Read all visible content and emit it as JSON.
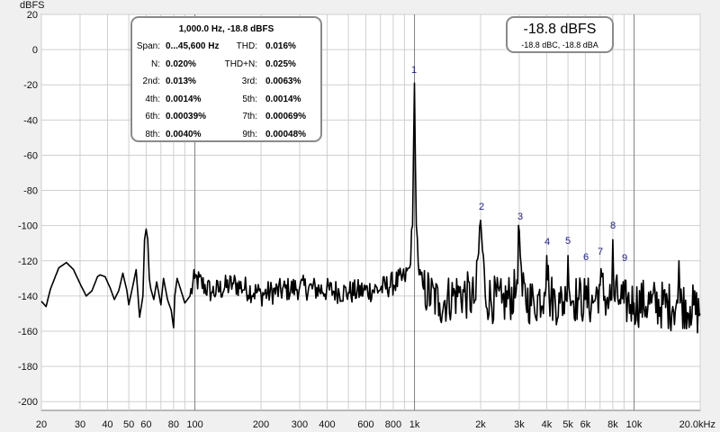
{
  "chart_data": {
    "type": "line",
    "ylabel": "dBFS",
    "xscale": "log",
    "xlim": [
      20,
      20000
    ],
    "ylim": [
      -205,
      20
    ],
    "y_ticks": [
      20,
      0,
      -20,
      -40,
      -60,
      -80,
      -100,
      -120,
      -140,
      -160,
      -180,
      -200
    ],
    "x_ticks": [
      {
        "value": 20,
        "label": "20"
      },
      {
        "value": 30,
        "label": "30"
      },
      {
        "value": 40,
        "label": "40"
      },
      {
        "value": 50,
        "label": "50"
      },
      {
        "value": 60,
        "label": "60"
      },
      {
        "value": 80,
        "label": "80"
      },
      {
        "value": 100,
        "label": "100"
      },
      {
        "value": 200,
        "label": "200"
      },
      {
        "value": 300,
        "label": "300"
      },
      {
        "value": 400,
        "label": "400"
      },
      {
        "value": 600,
        "label": "600"
      },
      {
        "value": 800,
        "label": "800"
      },
      {
        "value": 1000,
        "label": "1k"
      },
      {
        "value": 2000,
        "label": "2k"
      },
      {
        "value": 3000,
        "label": "3k"
      },
      {
        "value": 4000,
        "label": "4k"
      },
      {
        "value": 5000,
        "label": "5k"
      },
      {
        "value": 6000,
        "label": "6k"
      },
      {
        "value": 8000,
        "label": "8k"
      },
      {
        "value": 10000,
        "label": "10k"
      },
      {
        "value": 20000,
        "label": "20.0kHz"
      }
    ],
    "grid": true,
    "series": [
      {
        "color": "#000000",
        "x": [
          20,
          21,
          22,
          24,
          26,
          28,
          30,
          32,
          34,
          36,
          37,
          39,
          41,
          43,
          45,
          47,
          49,
          50,
          52,
          54,
          56,
          58,
          59,
          60,
          61,
          62,
          63,
          65,
          67,
          70,
          72,
          75,
          78,
          80,
          81,
          83,
          86,
          90,
          95,
          100,
          120,
          150,
          200,
          300,
          500,
          700,
          900,
          950,
          980,
          1000,
          1020,
          1050,
          1100,
          1300,
          1600,
          1900,
          2000,
          2100,
          2500,
          2900,
          3000,
          3100,
          3500,
          3900,
          4000,
          4100,
          4600,
          4900,
          5000,
          5100,
          5600,
          6000,
          6500,
          7000,
          7500,
          7900,
          8000,
          8100,
          8600,
          9000,
          10000,
          12000,
          15000,
          15800,
          16000,
          16200,
          18000,
          20000
        ],
        "y": [
          -143,
          -146,
          -136,
          -124,
          -121,
          -125,
          -133,
          -140,
          -137,
          -129,
          -128,
          -129,
          -135,
          -142,
          -137,
          -127,
          -137,
          -145,
          -135,
          -125,
          -152,
          -140,
          -108,
          -102,
          -108,
          -130,
          -136,
          -142,
          -132,
          -145,
          -130,
          -142,
          -148,
          -158,
          -140,
          -130,
          -136,
          -144,
          -140,
          -130,
          -138,
          -133,
          -139,
          -135,
          -138,
          -136,
          -130,
          -124,
          -100,
          -19,
          -100,
          -128,
          -136,
          -144,
          -138,
          -142,
          -97,
          -140,
          -144,
          -138,
          -103,
          -140,
          -144,
          -138,
          -117,
          -140,
          -144,
          -142,
          -117,
          -140,
          -142,
          -142,
          -144,
          -134,
          -142,
          -142,
          -108,
          -140,
          -142,
          -144,
          -144,
          -144,
          -146,
          -144,
          -120,
          -144,
          -146,
          -150
        ]
      }
    ],
    "annotations": [
      "1",
      "2",
      "3",
      "4",
      "5",
      "6",
      "7",
      "8",
      "9"
    ]
  },
  "stats": {
    "title": "1,000.0 Hz, -18.8 dBFS",
    "rows": [
      {
        "l_label": "Span:",
        "l_value": "0...45,600 Hz",
        "r_label": "THD:",
        "r_value": "0.016%"
      },
      {
        "l_label": "N:",
        "l_value": "0.020%",
        "r_label": "THD+N:",
        "r_value": "0.025%"
      },
      {
        "l_label": "2nd:",
        "l_value": "0.013%",
        "r_label": "3rd:",
        "r_value": "0.0063%"
      },
      {
        "l_label": "4th:",
        "l_value": "0.0014%",
        "r_label": "5th:",
        "r_value": "0.0014%"
      },
      {
        "l_label": "6th:",
        "l_value": "0.00039%",
        "r_label": "7th:",
        "r_value": "0.00069%"
      },
      {
        "l_label": "8th:",
        "l_value": "0.0040%",
        "r_label": "9th:",
        "r_value": "0.00048%"
      }
    ]
  },
  "level": {
    "main": "-18.8 dBFS",
    "sub": "-18.8 dBC, -18.8 dBA"
  }
}
